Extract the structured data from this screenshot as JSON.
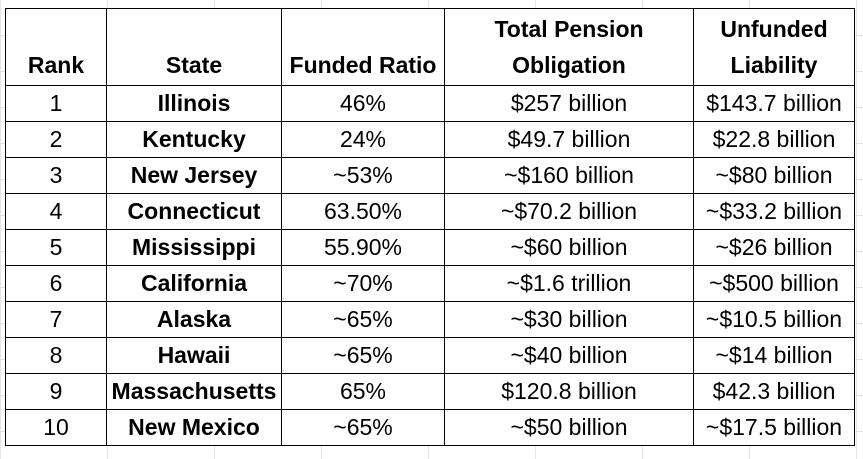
{
  "columns": {
    "rank": "Rank",
    "state": "State",
    "funded_ratio": "Funded Ratio",
    "obligation_line1": "Total Pension",
    "obligation_line2": "Obligation",
    "unfunded_line1": "Unfunded",
    "unfunded_line2": "Liability"
  },
  "rows": [
    {
      "rank": "1",
      "state": "Illinois",
      "funded_ratio": "46%",
      "obligation": "$257 billion",
      "unfunded": "$143.7 billion"
    },
    {
      "rank": "2",
      "state": "Kentucky",
      "funded_ratio": "24%",
      "obligation": "$49.7 billion",
      "unfunded": "$22.8 billion"
    },
    {
      "rank": "3",
      "state": "New Jersey",
      "funded_ratio": "~53%",
      "obligation": "~$160 billion",
      "unfunded": "~$80 billion"
    },
    {
      "rank": "4",
      "state": "Connecticut",
      "funded_ratio": "63.50%",
      "obligation": "~$70.2 billion",
      "unfunded": "~$33.2 billion"
    },
    {
      "rank": "5",
      "state": "Mississippi",
      "funded_ratio": "55.90%",
      "obligation": "~$60 billion",
      "unfunded": "~$26 billion"
    },
    {
      "rank": "6",
      "state": "California",
      "funded_ratio": "~70%",
      "obligation": "~$1.6 trillion",
      "unfunded": "~$500 billion"
    },
    {
      "rank": "7",
      "state": "Alaska",
      "funded_ratio": "~65%",
      "obligation": "~$30 billion",
      "unfunded": "~$10.5 billion"
    },
    {
      "rank": "8",
      "state": "Hawaii",
      "funded_ratio": "~65%",
      "obligation": "~$40 billion",
      "unfunded": "~$14 billion"
    },
    {
      "rank": "9",
      "state": "Massachusetts",
      "funded_ratio": "65%",
      "obligation": "$120.8 billion",
      "unfunded": "$42.3 billion"
    },
    {
      "rank": "10",
      "state": "New Mexico",
      "funded_ratio": "~65%",
      "obligation": "~$50 billion",
      "unfunded": "~$17.5 billion"
    }
  ]
}
